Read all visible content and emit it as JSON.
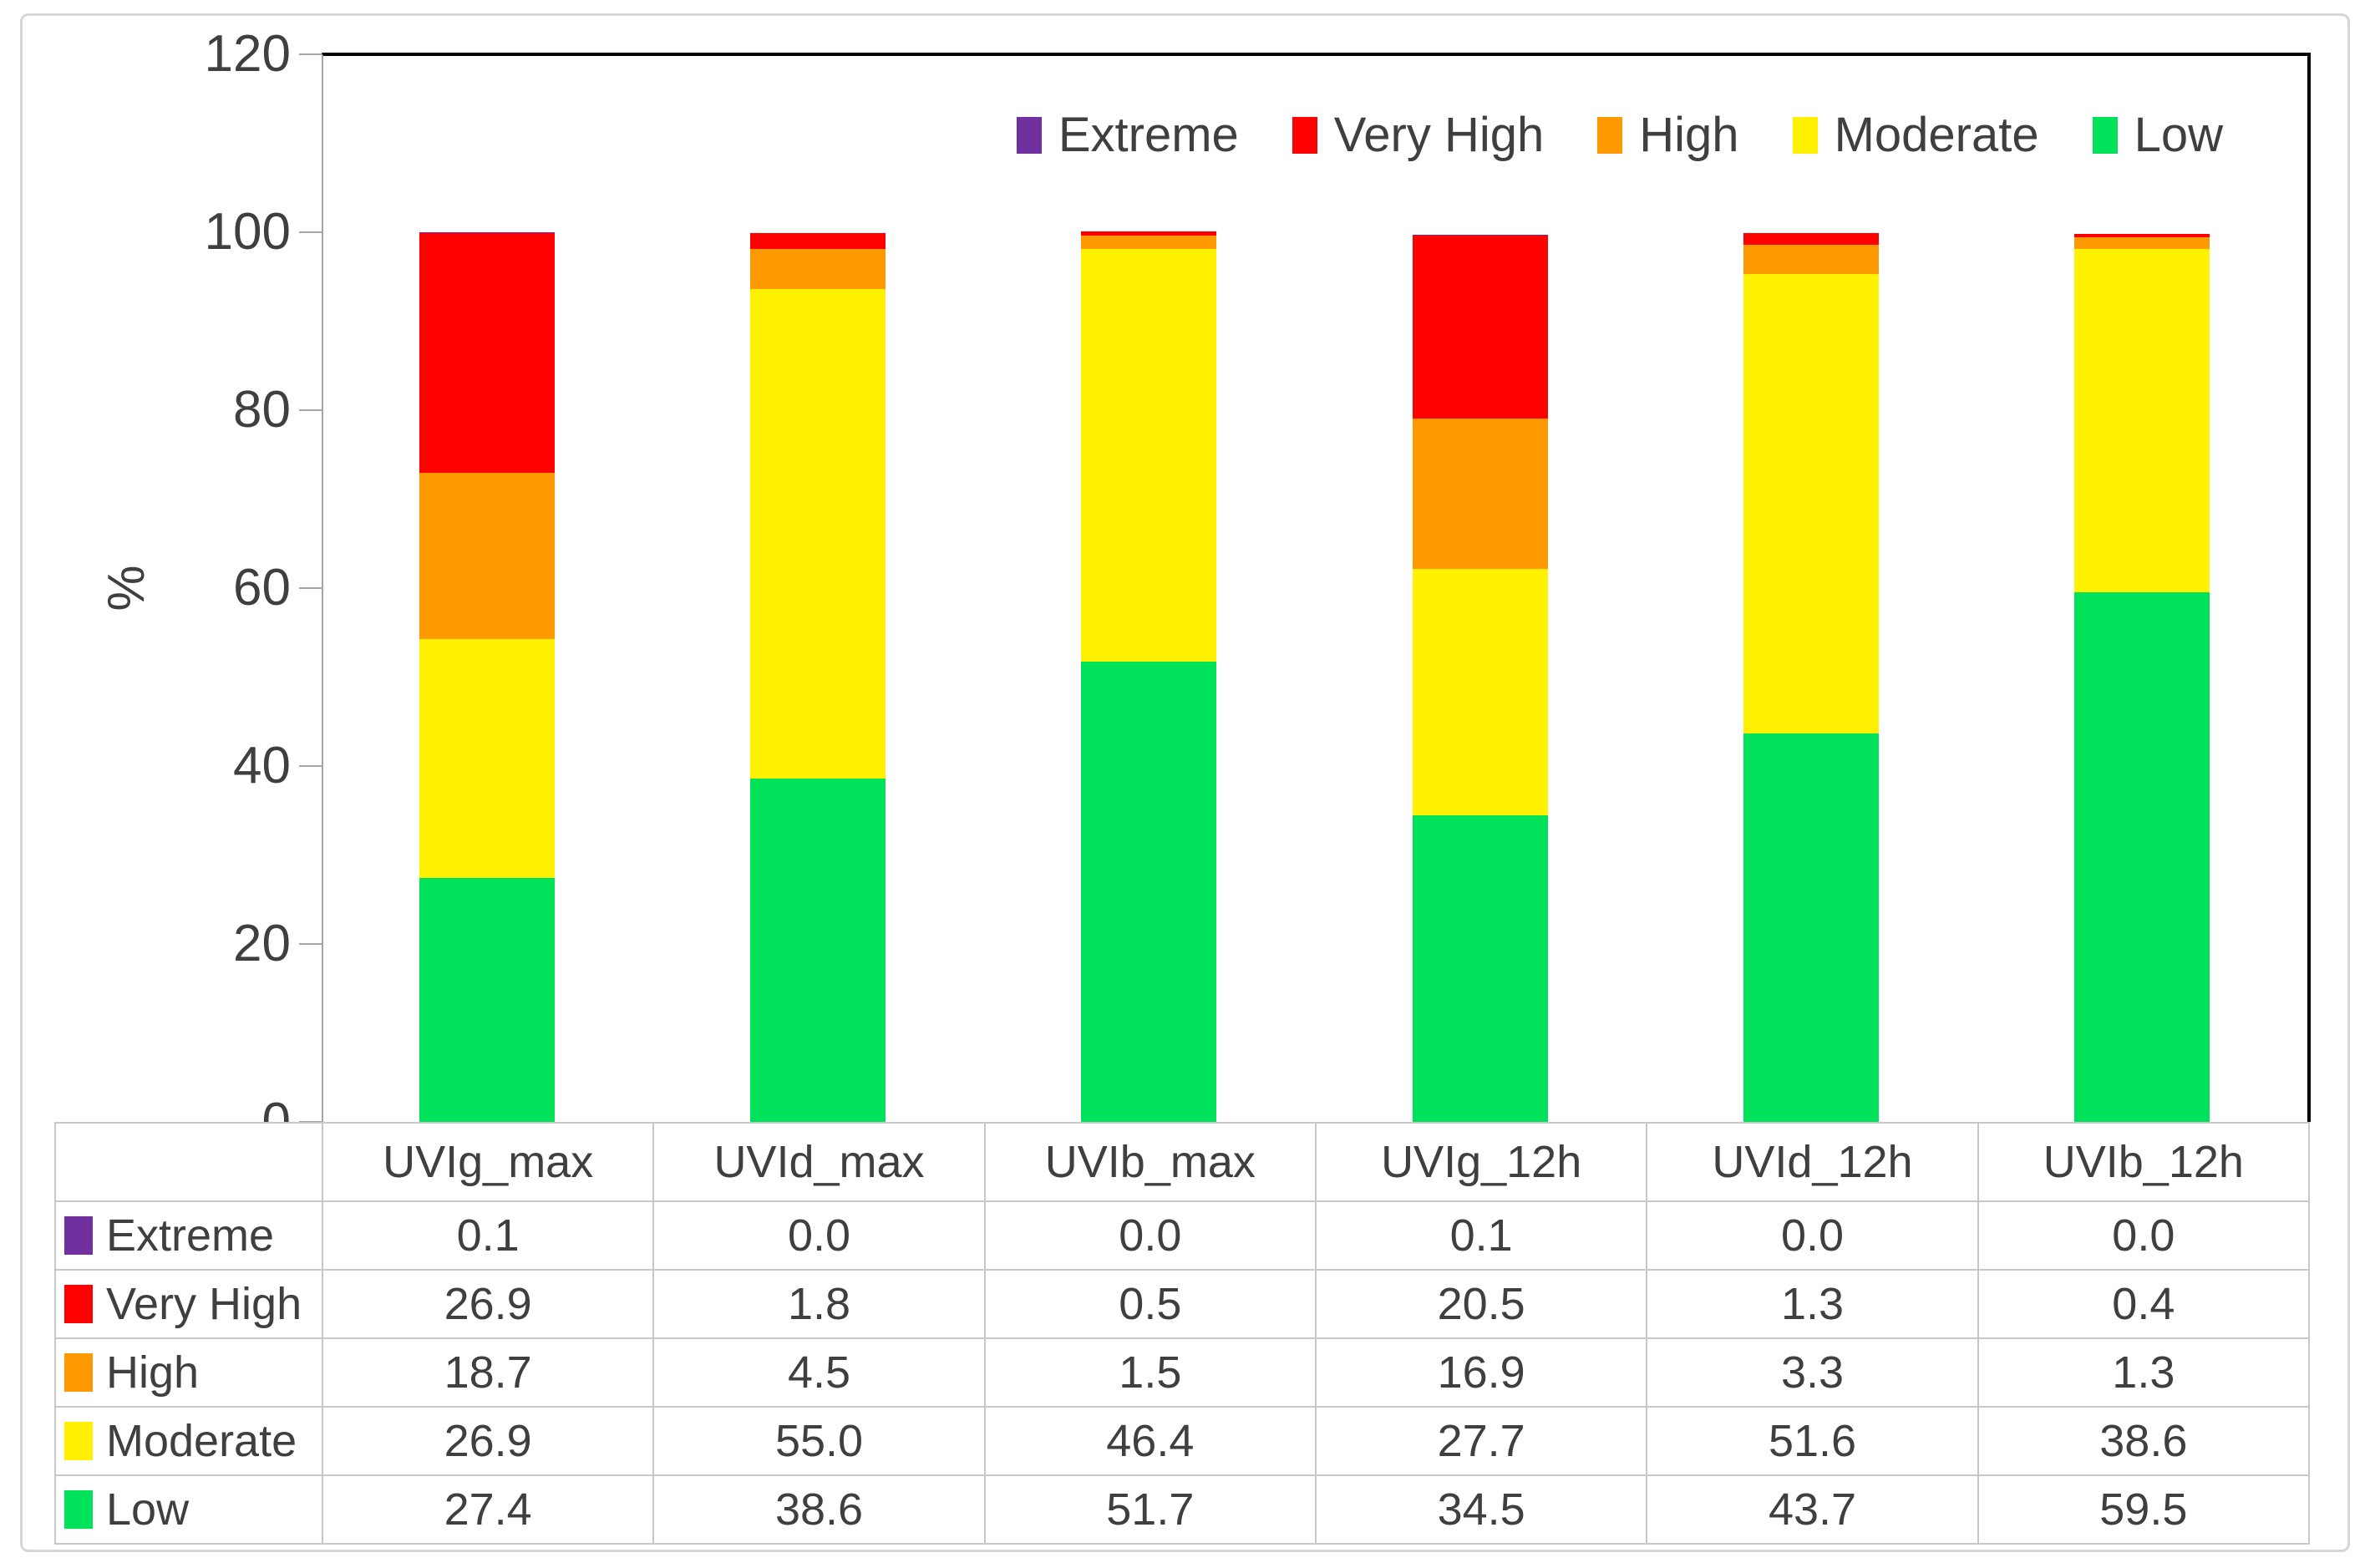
{
  "figure": {
    "kind": "stacked-bar-chart-with-table",
    "background": "#FFFFFF",
    "border_color": "#D6D6D6"
  },
  "colors": {
    "extreme": "#7030A0",
    "very_high": "#FF0000",
    "high": "#FF9900",
    "moderate": "#FFF100",
    "low": "#00E25A",
    "text": "#3F3F3F",
    "axis": "#A6A6A6",
    "table_border": "#C9C9C9",
    "plot_border": "#000000"
  },
  "y_axis": {
    "label": "%",
    "ticks": [
      "120",
      "100",
      "80",
      "60",
      "40",
      "20",
      "0"
    ],
    "min": 0,
    "max": 120
  },
  "chart_data": {
    "type": "bar",
    "stacked": true,
    "title": "",
    "xlabel": "",
    "ylabel": "%",
    "ylim": [
      0,
      120
    ],
    "grid": false,
    "legend_position": "top-right-inside",
    "categories": [
      "UVIg_max",
      "UVId_max",
      "UVIb_max",
      "UVIg_12h",
      "UVId_12h",
      "UVIb_12h"
    ],
    "series": [
      {
        "name": "Extreme",
        "color": "#7030A0",
        "values": [
          0.1,
          0.0,
          0.0,
          0.1,
          0.0,
          0.0
        ]
      },
      {
        "name": "Very High",
        "color": "#FF0000",
        "values": [
          26.9,
          1.8,
          0.5,
          20.5,
          1.3,
          0.4
        ]
      },
      {
        "name": "High",
        "color": "#FF9900",
        "values": [
          18.7,
          4.5,
          1.5,
          16.9,
          3.3,
          1.3
        ]
      },
      {
        "name": "Moderate",
        "color": "#FFF100",
        "values": [
          26.9,
          55.0,
          46.4,
          27.7,
          51.6,
          38.6
        ]
      },
      {
        "name": "Low",
        "color": "#00E25A",
        "values": [
          27.4,
          38.6,
          51.7,
          34.5,
          43.7,
          59.5
        ]
      }
    ],
    "stack_order_bottom_to_top": [
      "Low",
      "Moderate",
      "High",
      "Very High",
      "Extreme"
    ]
  },
  "table": {
    "header": [
      "",
      "UVIg_max",
      "UVId_max",
      "UVIb_max",
      "UVIg_12h",
      "UVId_12h",
      "UVIb_12h"
    ],
    "rows": [
      {
        "label": "Extreme",
        "color": "#7030A0",
        "values": [
          "0.1",
          "0.0",
          "0.0",
          "0.1",
          "0.0",
          "0.0"
        ]
      },
      {
        "label": "Very High",
        "color": "#FF0000",
        "values": [
          "26.9",
          "1.8",
          "0.5",
          "20.5",
          "1.3",
          "0.4"
        ]
      },
      {
        "label": "High",
        "color": "#FF9900",
        "values": [
          "18.7",
          "4.5",
          "1.5",
          "16.9",
          "3.3",
          "1.3"
        ]
      },
      {
        "label": "Moderate",
        "color": "#FFF100",
        "values": [
          "26.9",
          "55.0",
          "46.4",
          "27.7",
          "51.6",
          "38.6"
        ]
      },
      {
        "label": "Low",
        "color": "#00E25A",
        "values": [
          "27.4",
          "38.6",
          "51.7",
          "34.5",
          "43.7",
          "59.5"
        ]
      }
    ]
  }
}
